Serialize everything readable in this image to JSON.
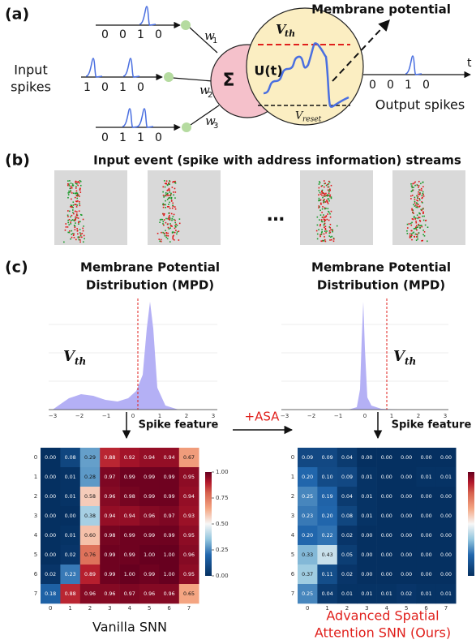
{
  "panel_a": {
    "label": "(a)",
    "membrane_title": "Membrane potential",
    "input_label": [
      "Input",
      "spikes"
    ],
    "input_trains": [
      [
        0,
        0,
        1,
        0
      ],
      [
        1,
        0,
        1,
        0
      ],
      [
        0,
        1,
        1,
        0
      ]
    ],
    "weights": [
      {
        "symbol": "w",
        "index": "1"
      },
      {
        "symbol": "w",
        "index": "2"
      },
      {
        "symbol": "w",
        "index": "3"
      }
    ],
    "sum_symbol": "Σ",
    "potential_label": "U(t)",
    "threshold": {
      "symbol": "V",
      "index": "th"
    },
    "reset": {
      "symbol": "V",
      "index": "reset"
    },
    "output_train": [
      0,
      0,
      1,
      0
    ],
    "time_label": "t",
    "output_label": "Output spikes"
  },
  "panel_b": {
    "label": "(b)",
    "title": "Input event (spike with address information) streams",
    "ellipsis": "…"
  },
  "panel_c": {
    "label": "(c)",
    "mpd_title": [
      "Membrane Potential",
      "Distribution (MPD)"
    ],
    "hist_ticks": [
      "−3",
      "−2",
      "−1",
      "0",
      "1",
      "2",
      "3"
    ],
    "threshold": {
      "symbol": "V",
      "index": "th"
    },
    "spike_feature": "Spike feature",
    "asa": "+ASA",
    "colorbar_ticks": [
      "0.00",
      "0.25",
      "0.50",
      "0.75",
      "1.00"
    ],
    "row_labels": [
      "0",
      "1",
      "2",
      "3",
      "4",
      "5",
      "6",
      "7"
    ],
    "col_labels": [
      "0",
      "1",
      "2",
      "3",
      "4",
      "5",
      "6",
      "7"
    ],
    "vanilla": {
      "caption": "Vanilla SNN",
      "matrix": [
        [
          "0.00",
          "0.08",
          "0.29",
          "0.88",
          "0.92",
          "0.94",
          "0.94",
          "0.67"
        ],
        [
          "0.00",
          "0.01",
          "0.28",
          "0.97",
          "0.99",
          "0.99",
          "0.99",
          "0.95"
        ],
        [
          "0.00",
          "0.01",
          "0.58",
          "0.96",
          "0.98",
          "0.99",
          "0.99",
          "0.94"
        ],
        [
          "0.00",
          "0.00",
          "0.38",
          "0.94",
          "0.94",
          "0.96",
          "0.97",
          "0.93"
        ],
        [
          "0.00",
          "0.01",
          "0.60",
          "0.98",
          "0.99",
          "0.99",
          "0.99",
          "0.95"
        ],
        [
          "0.00",
          "0.02",
          "0.76",
          "0.99",
          "0.99",
          "1.00",
          "1.00",
          "0.96"
        ],
        [
          "0.02",
          "0.23",
          "0.89",
          "0.99",
          "1.00",
          "0.99",
          "1.00",
          "0.95"
        ],
        [
          "0.18",
          "0.88",
          "0.96",
          "0.96",
          "0.97",
          "0.96",
          "0.96",
          "0.65"
        ]
      ]
    },
    "asa_snn": {
      "caption": [
        "Advanced Spatial",
        "Attention SNN (Ours)"
      ],
      "matrix": [
        [
          "0.09",
          "0.09",
          "0.04",
          "0.00",
          "0.00",
          "0.00",
          "0.00",
          "0.00"
        ],
        [
          "0.20",
          "0.10",
          "0.09",
          "0.01",
          "0.00",
          "0.00",
          "0.01",
          "0.01"
        ],
        [
          "0.25",
          "0.19",
          "0.04",
          "0.01",
          "0.00",
          "0.00",
          "0.00",
          "0.00"
        ],
        [
          "0.23",
          "0.20",
          "0.08",
          "0.01",
          "0.00",
          "0.00",
          "0.00",
          "0.00"
        ],
        [
          "0.20",
          "0.22",
          "0.02",
          "0.00",
          "0.00",
          "0.00",
          "0.00",
          "0.00"
        ],
        [
          "0.33",
          "0.43",
          "0.05",
          "0.00",
          "0.00",
          "0.00",
          "0.00",
          "0.00"
        ],
        [
          "0.37",
          "0.11",
          "0.02",
          "0.00",
          "0.00",
          "0.00",
          "0.00",
          "0.00"
        ],
        [
          "0.25",
          "0.04",
          "0.01",
          "0.01",
          "0.01",
          "0.02",
          "0.01",
          "0.01"
        ]
      ]
    }
  }
}
